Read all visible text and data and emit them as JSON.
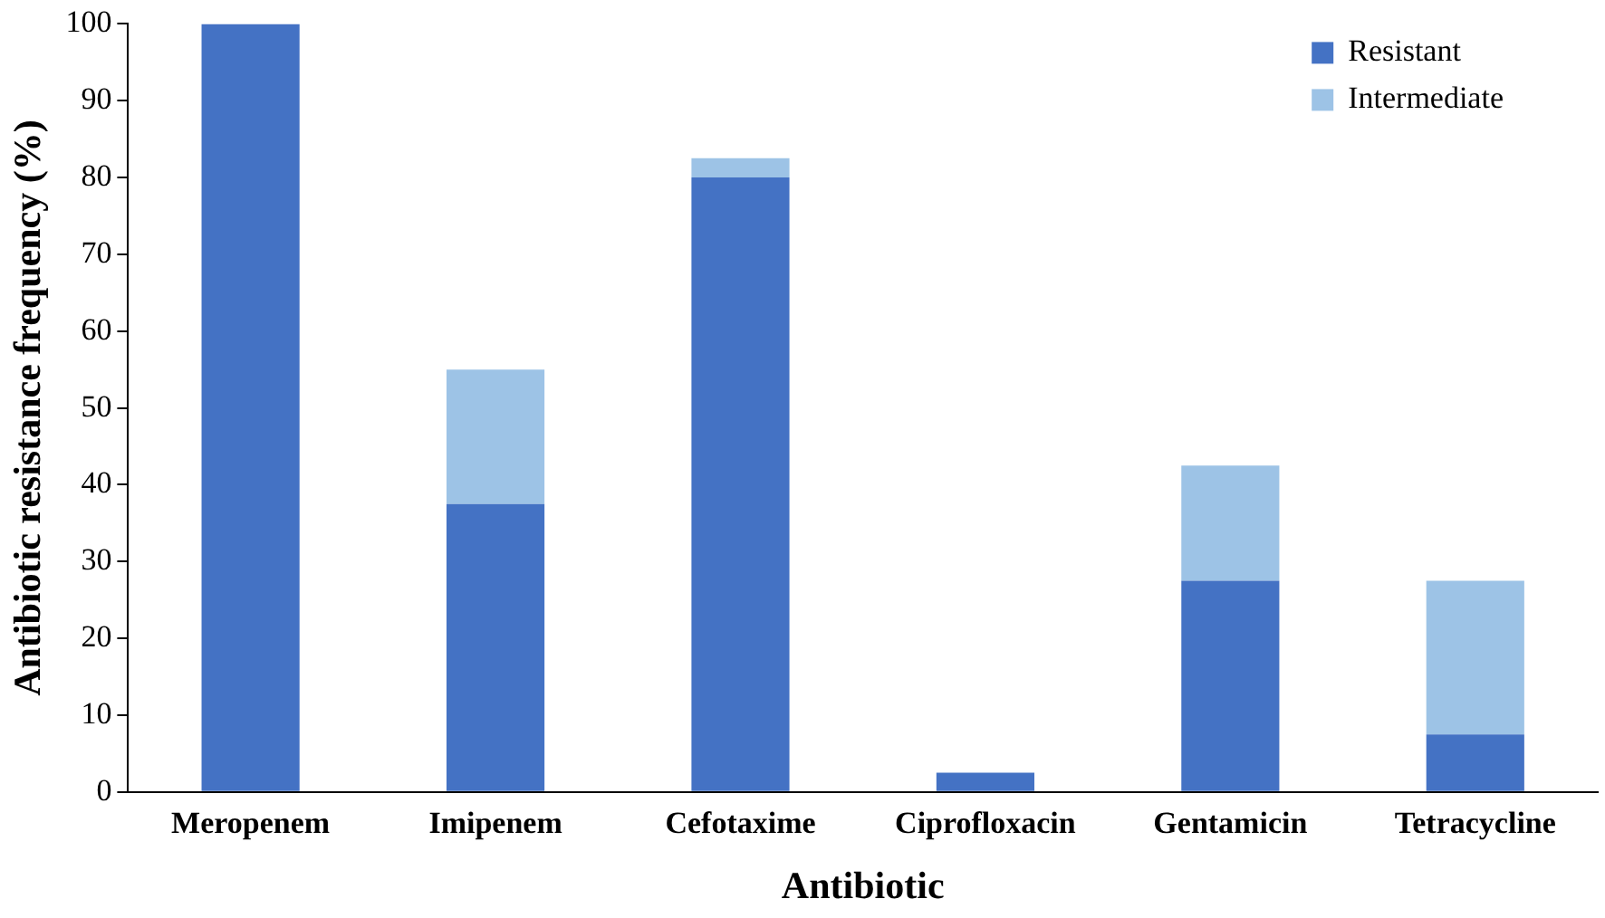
{
  "chart_data": {
    "type": "bar",
    "xlabel": "Antibiotic",
    "ylabel": "Antibiotic resistance frequency (%)",
    "categories": [
      "Meropenem",
      "Imipenem",
      "Cefotaxime",
      "Ciprofloxacin",
      "Gentamicin",
      "Tetracycline"
    ],
    "series": [
      {
        "name": "Resistant",
        "color": "#4472c4",
        "values": [
          100,
          37.5,
          80,
          2.5,
          27.5,
          7.5
        ]
      },
      {
        "name": "Intermediate",
        "color": "#9dc3e6",
        "values": [
          0,
          17.5,
          2.5,
          0,
          15,
          20
        ]
      }
    ],
    "stacked": true,
    "ylim": [
      0,
      100
    ],
    "yticks": [
      0,
      10,
      20,
      30,
      40,
      50,
      60,
      70,
      80,
      90,
      100
    ],
    "grid": false,
    "legend": "top right"
  }
}
